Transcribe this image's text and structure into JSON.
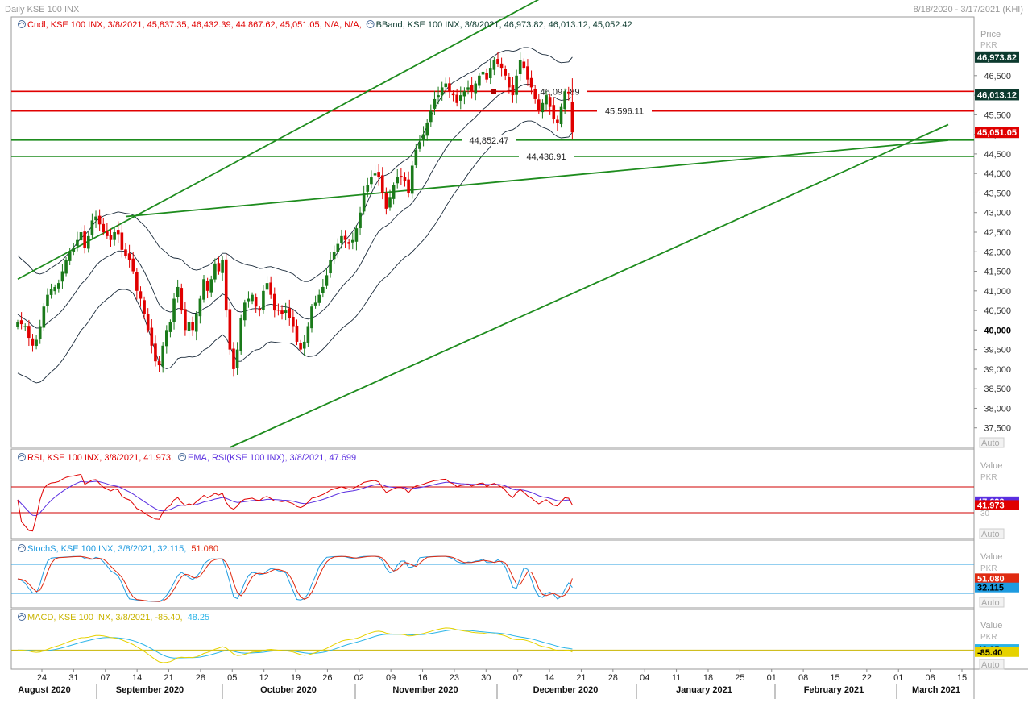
{
  "window": {
    "title": "Daily KSE 100 INX",
    "date_range": "8/18/2020 - 3/17/2021 (KHI)"
  },
  "colors": {
    "up_candle": "#1a7a1a",
    "down_candle": "#e00000",
    "trend_line": "#1e8c1e",
    "resistance_line": "#e00000",
    "support_line": "#1e8c1e",
    "bband": "#1a2a3a",
    "rsi": "#e00000",
    "rsi_ema": "#5a2ee0",
    "stoch_k": "#1e9be0",
    "stoch_d": "#e02a10",
    "macd": "#2ab4e8",
    "macd_signal": "#e6d200",
    "price_tag_dark": "#0c3a2e"
  },
  "legends": {
    "price": [
      {
        "icon": "indicator-icon",
        "text": "Cndl, KSE 100 INX, 3/8/2021, 45,837.35, 46,432.39, 44,867.62, 45,051.05, N/A, N/A,",
        "color": "#e00000"
      },
      {
        "icon": "indicator-icon",
        "text": "BBand, KSE 100 INX, 3/8/2021, 46,973.82, 46,013.12, 45,052.42",
        "color": "#0c3a2e"
      }
    ],
    "rsi": [
      {
        "icon": "indicator-icon",
        "text": "RSI, KSE 100 INX, 3/8/2021, 41.973,",
        "color": "#e00000"
      },
      {
        "icon": "indicator-icon",
        "text": "EMA, RSI(KSE 100 INX), 3/8/2021, 47.699",
        "color": "#5a2ee0"
      }
    ],
    "stoch": [
      {
        "icon": "indicator-icon",
        "text": "StochS, KSE 100 INX, 3/8/2021, 32.115,",
        "color": "#1e9be0"
      },
      {
        "icon": "",
        "text": "51.080",
        "color": "#e02a10"
      }
    ],
    "macd": [
      {
        "icon": "indicator-icon",
        "text": "MACD, KSE 100 INX, 3/8/2021, -85.40,",
        "color": "#c8b400"
      },
      {
        "icon": "",
        "text": "48.25",
        "color": "#2ab4e8"
      }
    ]
  },
  "axis": {
    "price_title": "Price",
    "price_unit": "PKR",
    "value_title": "Value",
    "value_unit": "PKR",
    "auto_label": "Auto",
    "rsi_ref_label": "30"
  },
  "chart_data": [
    {
      "type": "candlestick",
      "title": "Daily KSE 100 INX",
      "ylim": [
        37000,
        48000
      ],
      "y_ticks": [
        37500,
        38000,
        38500,
        39000,
        39500,
        40000,
        40500,
        41000,
        41500,
        42000,
        42500,
        43000,
        43500,
        44000,
        44500,
        45000,
        45500,
        46000,
        46500
      ],
      "x_day_ticks": [
        "24",
        "31",
        "07",
        "14",
        "21",
        "28",
        "05",
        "12",
        "19",
        "26",
        "02",
        "09",
        "16",
        "23",
        "30",
        "07",
        "14",
        "21",
        "28",
        "04",
        "11",
        "18",
        "25",
        "01",
        "08",
        "15",
        "22",
        "01",
        "08",
        "15"
      ],
      "x_month_labels": [
        "August 2020",
        "September 2020",
        "October 2020",
        "November 2020",
        "December 2020",
        "January 2021",
        "February 2021",
        "March 2021"
      ],
      "last_candle": {
        "date": "3/8/2021",
        "open": 45837.35,
        "high": 46432.39,
        "low": 44867.62,
        "close": 45051.05
      },
      "bband": {
        "upper": 46973.82,
        "middle": 46013.12,
        "lower": 45052.42
      },
      "horizontal_levels": [
        {
          "value": 46097.89,
          "label": "46,097.89",
          "kind": "resistance"
        },
        {
          "value": 45596.11,
          "label": "45,596.11",
          "kind": "resistance"
        },
        {
          "value": 44852.47,
          "label": "44,852.47",
          "kind": "support"
        },
        {
          "value": 44436.91,
          "label": "44,436.91",
          "kind": "support"
        }
      ],
      "price_tags": [
        {
          "value": 46973.82,
          "label": "46,973.82",
          "style": "dark"
        },
        {
          "value": 46013.12,
          "label": "46,013.12",
          "style": "dark"
        },
        {
          "value": 45052.42,
          "label": "45,052.42",
          "style": "dark"
        },
        {
          "value": 45051.05,
          "label": "45,051.05",
          "style": "red"
        }
      ],
      "trend_lines": [
        {
          "from": {
            "bar": 0,
            "value": 41300
          },
          "to": {
            "bar": 141,
            "value": 48500
          }
        },
        {
          "from": {
            "bar": 29,
            "value": 42900
          },
          "to": {
            "bar": 250,
            "value": 44850
          }
        },
        {
          "from": {
            "bar": 57,
            "value": 37000
          },
          "to": {
            "bar": 250,
            "value": 45250
          }
        }
      ],
      "trend_line_anchors": [
        {
          "bar": 120,
          "value": 46100
        },
        {
          "bar": 191,
          "value": 44430
        }
      ],
      "closes": [
        40200,
        40150,
        40100,
        39800,
        39600,
        39750,
        40100,
        40600,
        40900,
        41050,
        41100,
        41200,
        41500,
        41800,
        42000,
        42100,
        42300,
        42500,
        42100,
        42400,
        42800,
        42900,
        42700,
        42500,
        42400,
        42300,
        42500,
        42450,
        42050,
        41900,
        41800,
        41500,
        41000,
        40800,
        40400,
        40000,
        39600,
        39200,
        39100,
        39600,
        40000,
        40200,
        40800,
        41100,
        40500,
        40000,
        40200,
        40000,
        40400,
        40800,
        41300,
        41000,
        41300,
        41700,
        41500,
        41800,
        40500,
        39500,
        39000,
        39500,
        40300,
        40700,
        40800,
        40900,
        40600,
        40500,
        41000,
        41200,
        40900,
        40500,
        40500,
        40400,
        40500,
        40300,
        40100,
        39700,
        39500,
        39700,
        40100,
        40600,
        40700,
        40900,
        41100,
        41400,
        41800,
        42000,
        42200,
        42400,
        42300,
        42200,
        42300,
        42600,
        43000,
        43500,
        43700,
        43900,
        44000,
        43900,
        43500,
        43100,
        43400,
        43700,
        43900,
        43900,
        43800,
        43500,
        44200,
        44600,
        44800,
        45000,
        45300,
        45600,
        45900,
        46000,
        46200,
        46300,
        46100,
        46000,
        45800,
        46000,
        46100,
        46200,
        46100,
        46300,
        46500,
        46600,
        46400,
        46700,
        46900,
        46800,
        46700,
        46500,
        46200,
        46000,
        46500,
        46900,
        46700,
        46400,
        46200,
        45900,
        45600,
        45800,
        46000,
        45700,
        45400,
        45300,
        45700,
        46100,
        46050,
        45051.05
      ],
      "ema20": [
        40400,
        40330,
        40270,
        40200,
        40110,
        40050,
        40050,
        40100,
        40180,
        40260,
        40330,
        40410,
        40510,
        40630,
        40760,
        40890,
        41030,
        41170,
        41260,
        41370,
        41510,
        41640,
        41740,
        41810,
        41870,
        41910,
        41970,
        42020,
        42020,
        42010,
        41990,
        41940,
        41800,
        41660,
        41490,
        41300,
        41090,
        40860,
        40650,
        40550,
        40490,
        40460,
        40490,
        40550,
        40550,
        40500,
        40470,
        40430,
        40430,
        40470,
        40550,
        40590,
        40660,
        40760,
        40830,
        40920,
        40880,
        40750,
        40580,
        40480,
        40460,
        40480,
        40510,
        40540,
        40550,
        40540,
        40580,
        40640,
        40660,
        40640,
        40620,
        40600,
        40590,
        40570,
        40530,
        40450,
        40360,
        40300,
        40280,
        40310,
        40350,
        40420,
        40500,
        40590,
        40710,
        40840,
        40960,
        41090,
        41200,
        41290,
        41390,
        41510,
        41660,
        41840,
        42020,
        42200,
        42370,
        42520,
        42610,
        42660,
        42730,
        42830,
        42930,
        43020,
        43100,
        43150,
        43250,
        43380,
        43520,
        43660,
        43810,
        44000,
        44160,
        44330,
        44480,
        44640,
        44770,
        44890,
        44980,
        45080,
        45170,
        45270,
        45350,
        45440,
        45540,
        45640,
        45710,
        45810,
        45900,
        45990,
        46050,
        46100,
        46120,
        46120,
        46160,
        46230,
        46270,
        46280,
        46270,
        46230,
        46160,
        46110,
        46090,
        46050,
        45970,
        45900,
        45870,
        45880,
        45890,
        46013.12
      ],
      "band_width": [
        1500,
        1480,
        1460,
        1440,
        1420,
        1400,
        1380,
        1360,
        1340,
        1330,
        1320,
        1300,
        1280,
        1260,
        1240,
        1220,
        1200,
        1180,
        1170,
        1160,
        1150,
        1140,
        1120,
        1100,
        1080,
        1050,
        1020,
        1000,
        980,
        970,
        980,
        1000,
        1050,
        1100,
        1180,
        1260,
        1330,
        1420,
        1480,
        1500,
        1480,
        1420,
        1350,
        1280,
        1250,
        1200,
        1150,
        1120,
        1100,
        1080,
        1060,
        1050,
        1040,
        1030,
        1030,
        1040,
        1080,
        1150,
        1230,
        1280,
        1260,
        1200,
        1150,
        1100,
        1060,
        1030,
        1000,
        970,
        960,
        950,
        940,
        930,
        920,
        900,
        900,
        900,
        920,
        940,
        960,
        980,
        1000,
        1000,
        990,
        980,
        990,
        1010,
        1030,
        1060,
        1090,
        1110,
        1130,
        1150,
        1180,
        1220,
        1260,
        1290,
        1320,
        1330,
        1320,
        1300,
        1280,
        1270,
        1260,
        1250,
        1240,
        1240,
        1250,
        1280,
        1320,
        1360,
        1400,
        1440,
        1480,
        1500,
        1500,
        1490,
        1470,
        1440,
        1400,
        1360,
        1320,
        1280,
        1240,
        1200,
        1180,
        1160,
        1140,
        1120,
        1100,
        1080,
        1060,
        1040,
        1020,
        1000,
        980,
        960,
        950,
        940,
        930,
        920,
        920,
        930,
        940,
        950,
        960,
        960,
        960,
        960,
        960,
        961
      ],
      "rsi": {
        "ylim": [
          0,
          100
        ],
        "ref_lines": [
          70,
          30
        ],
        "last_rsi": 41.973,
        "last_ema": 47.699,
        "tags": [
          {
            "value": 47.699,
            "label": "47.699",
            "color": "#5a2ee0"
          },
          {
            "value": 41.973,
            "label": "41.973",
            "color": "#e00000"
          }
        ]
      },
      "stoch": {
        "ylim": [
          0,
          100
        ],
        "ref_lines": [
          80,
          20
        ],
        "last_k": 32.115,
        "last_d": 51.08,
        "tags": [
          {
            "value": 51.08,
            "label": "51.080",
            "color": "#e02a10"
          },
          {
            "value": 32.115,
            "label": "32.115",
            "color": "#1e9be0"
          }
        ]
      },
      "macd": {
        "ylim": [
          -700,
          1300
        ],
        "zero_line": 0,
        "last_macd": -85.4,
        "last_signal": 48.25,
        "tags": [
          {
            "value": 48.25,
            "label": "48.25",
            "color": "#2ab4e8"
          },
          {
            "value": -85.4,
            "label": "-85.40",
            "color": "#e6d200"
          }
        ]
      }
    }
  ]
}
